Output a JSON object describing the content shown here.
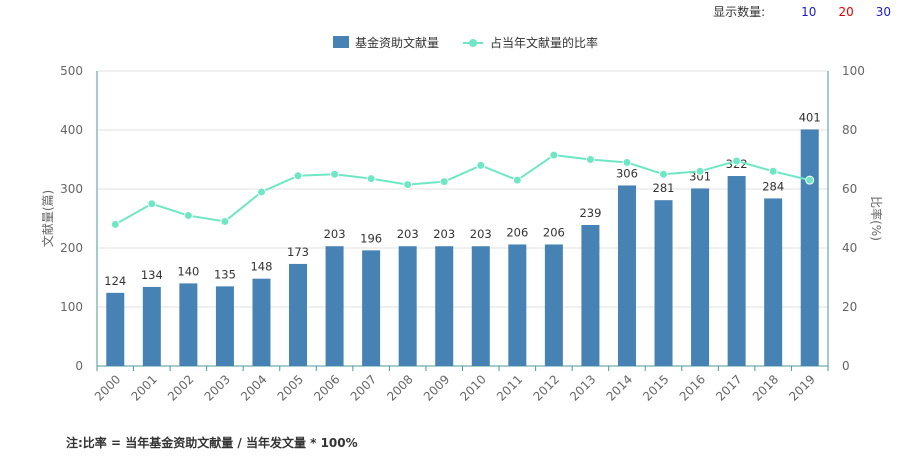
{
  "controls": {
    "display_label": "显示数量:",
    "options": [
      {
        "label": "10",
        "color": "#1a1acc"
      },
      {
        "label": "20",
        "color": "#e60000"
      },
      {
        "label": "30",
        "color": "#1a1acc"
      }
    ]
  },
  "note": "注:比率 = 当年基金资助文献量 / 当年发文量 * 100%",
  "chart_data": {
    "type": "bar",
    "categories": [
      "2000",
      "2001",
      "2002",
      "2003",
      "2004",
      "2005",
      "2006",
      "2007",
      "2008",
      "2009",
      "2010",
      "2011",
      "2012",
      "2013",
      "2014",
      "2015",
      "2016",
      "2017",
      "2018",
      "2019"
    ],
    "series": [
      {
        "name": "基金资助文献量",
        "type": "bar",
        "axis": "left",
        "color": "#4682b4",
        "values": [
          124,
          134,
          140,
          135,
          148,
          173,
          203,
          196,
          203,
          203,
          203,
          206,
          206,
          239,
          306,
          281,
          301,
          322,
          284,
          401
        ]
      },
      {
        "name": "占当年文献量的比率",
        "type": "line",
        "axis": "right",
        "color": "#6ee8c4",
        "values": [
          48,
          55,
          51,
          49,
          59,
          64.5,
          65,
          63.5,
          61.5,
          62.5,
          68,
          63,
          71.5,
          70,
          69,
          65,
          66,
          69.5,
          66,
          63
        ]
      }
    ],
    "ylabel": "文献量(篇)",
    "ylabel_right": "比率(%)",
    "ylim": [
      0,
      500
    ],
    "yticks": [
      0,
      100,
      200,
      300,
      400,
      500
    ],
    "ylim_right": [
      0,
      100
    ],
    "yticks_right": [
      0,
      20,
      40,
      60,
      80,
      100
    ],
    "grid": true,
    "legend": "top-center"
  }
}
